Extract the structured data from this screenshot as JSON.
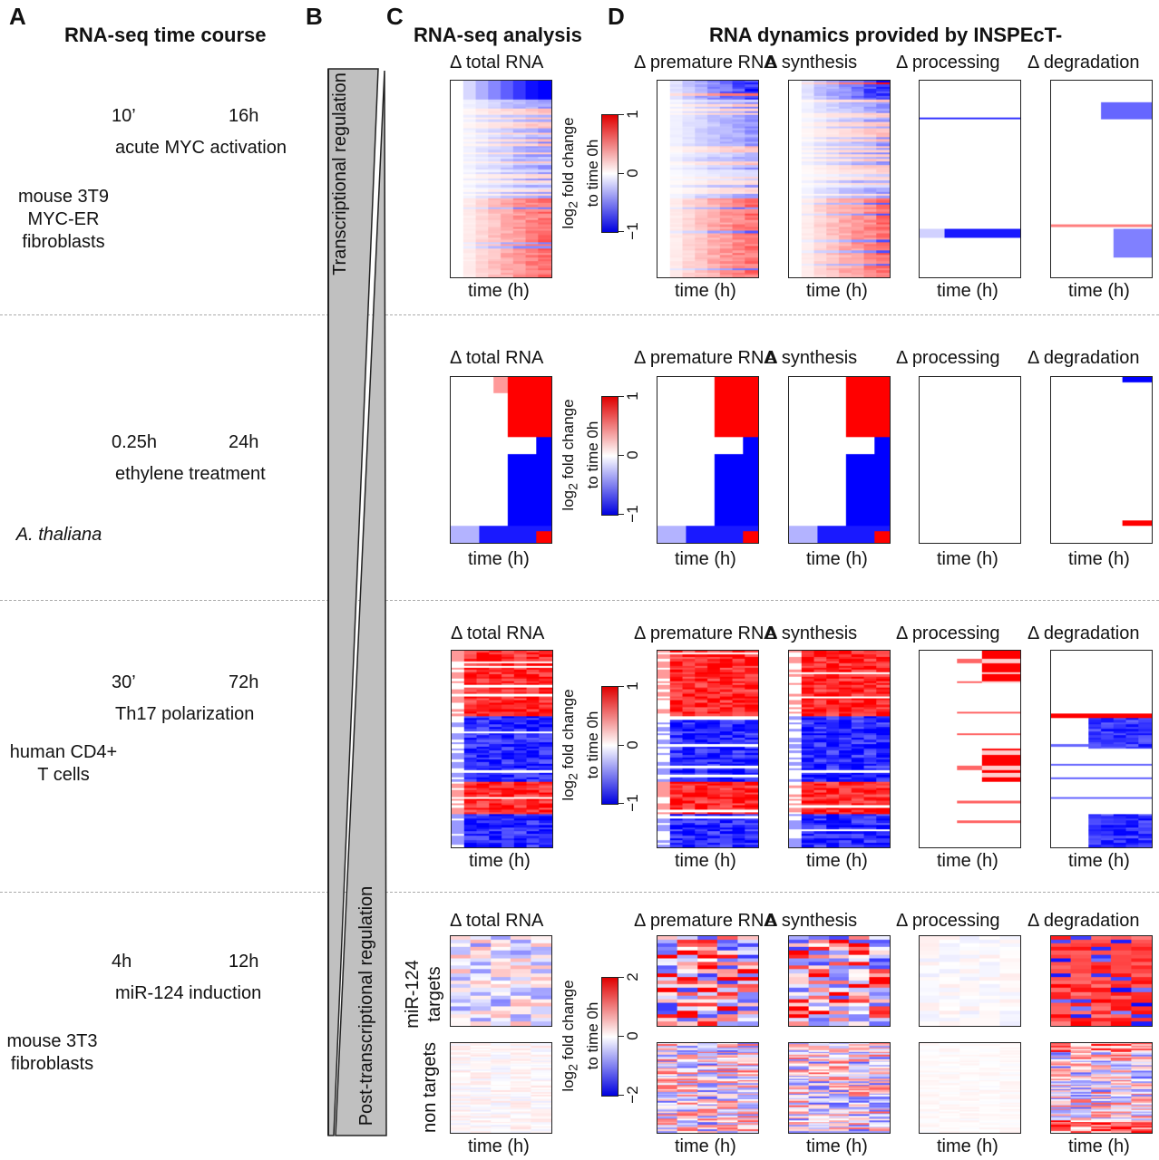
{
  "panel_labels": [
    "A",
    "B",
    "C",
    "D"
  ],
  "headings": {
    "a": "RNA-seq time course",
    "c": "RNA-seq analysis",
    "d": "RNA dynamics provided by INSPEcT-"
  },
  "panel_b": {
    "top": "Transcriptional regulation",
    "bottom": "Post-transcriptional regulation"
  },
  "heatmap_titles": [
    "Δ total RNA",
    "Δ premature RNA",
    "Δ synthesis",
    "Δ processing",
    "Δ degradation"
  ],
  "xlabel": "time (h)",
  "colorbar_label": [
    "log2 fold change",
    "to time 0h"
  ],
  "colors": {
    "high": "#e00000",
    "mid": "#ffffff",
    "low": "#0000e0",
    "icon": "#555555",
    "wedge": "#c0c0c0"
  },
  "rows": [
    {
      "organism": [
        "mouse 3T9",
        "MYC-ER",
        "fibroblasts"
      ],
      "icon": "fibroblast-cell",
      "start": "10’",
      "end": "16h",
      "treatment": "acute MYC activation",
      "gradient": true,
      "colorbar_ticks": [
        "1",
        "0",
        "−1"
      ]
    },
    {
      "organism": [
        "A. thaliana"
      ],
      "icon": "plant",
      "start": "0.25h",
      "end": "24h",
      "treatment": "ethylene treatment",
      "gradient": false,
      "colorbar_ticks": [
        "1",
        "0",
        "−1"
      ]
    },
    {
      "organism": [
        "human CD4+",
        "T cells"
      ],
      "icon": "t-cell",
      "start": "30’",
      "end": "72h",
      "treatment": "Th17 polarization",
      "gradient": false,
      "colorbar_ticks": [
        "1",
        "0",
        "−1"
      ]
    },
    {
      "organism": [
        "mouse 3T3",
        "fibroblasts"
      ],
      "icon": "fibroblast-cell",
      "start": "4h",
      "end": "12h",
      "treatment": "miR-124 induction",
      "gradient": true,
      "colorbar_ticks": [
        "2",
        "0",
        "−2"
      ],
      "groups": [
        "miR-124\ntargets",
        "non targets"
      ]
    }
  ]
}
